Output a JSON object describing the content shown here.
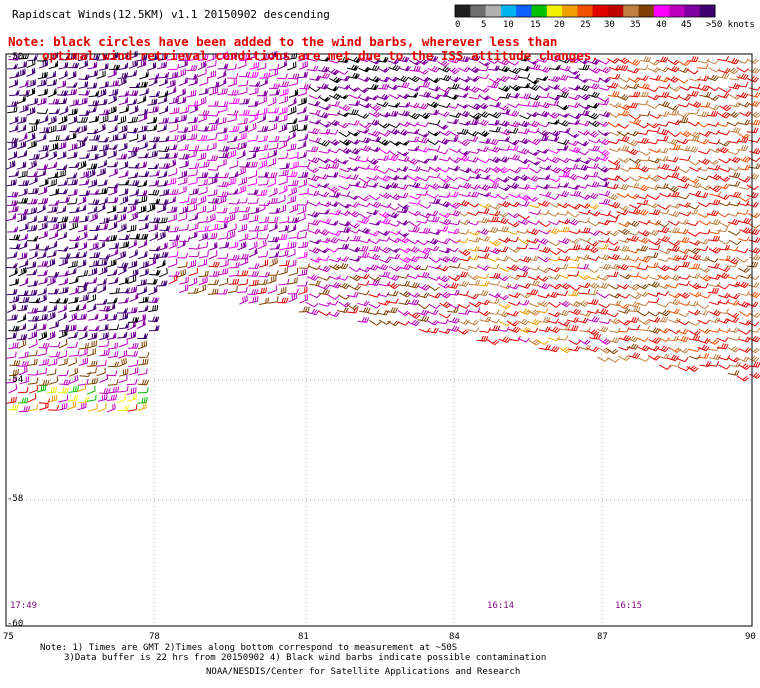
{
  "title": "Rapidscat Winds(12.5KM) v1.1 20150902 descending",
  "note": {
    "line1": "Note: black circles have been added to the wind barbs, wherever less than",
    "line2": "optimal wind retrieval conditions are met due to the ISS attitude changes."
  },
  "legend": {
    "labels": [
      "0",
      "5",
      "10",
      "15",
      "20",
      "25",
      "30",
      "35",
      "40",
      "45",
      ">50 knots"
    ],
    "colors": [
      "#202020",
      "#707070",
      "#b0b0b0",
      "#00b4f0",
      "#1060ff",
      "#00c000",
      "#f0f000",
      "#f0a000",
      "#f05000",
      "#e00000",
      "#c00000",
      "#c08040",
      "#804000",
      "#ff00ff",
      "#c000c0",
      "#8000a0",
      "#400070"
    ]
  },
  "axes": {
    "lat_labels": [
      "-50",
      "-54",
      "-58",
      "-60"
    ],
    "lon_labels": [
      "75",
      "78",
      "81",
      "84",
      "87",
      "90"
    ]
  },
  "times": [
    "17:49",
    "16:14",
    "16:15"
  ],
  "footer": {
    "line1": "Note: 1) Times are GMT 2)Times along bottom correspond to measurement at ~50S",
    "line2": "3)Data buffer is 22 hrs from 20150902 4) Black wind barbs indicate possible contamination",
    "line3": "NOAA/NESDIS/Center for Satellite Applications and Research"
  }
}
